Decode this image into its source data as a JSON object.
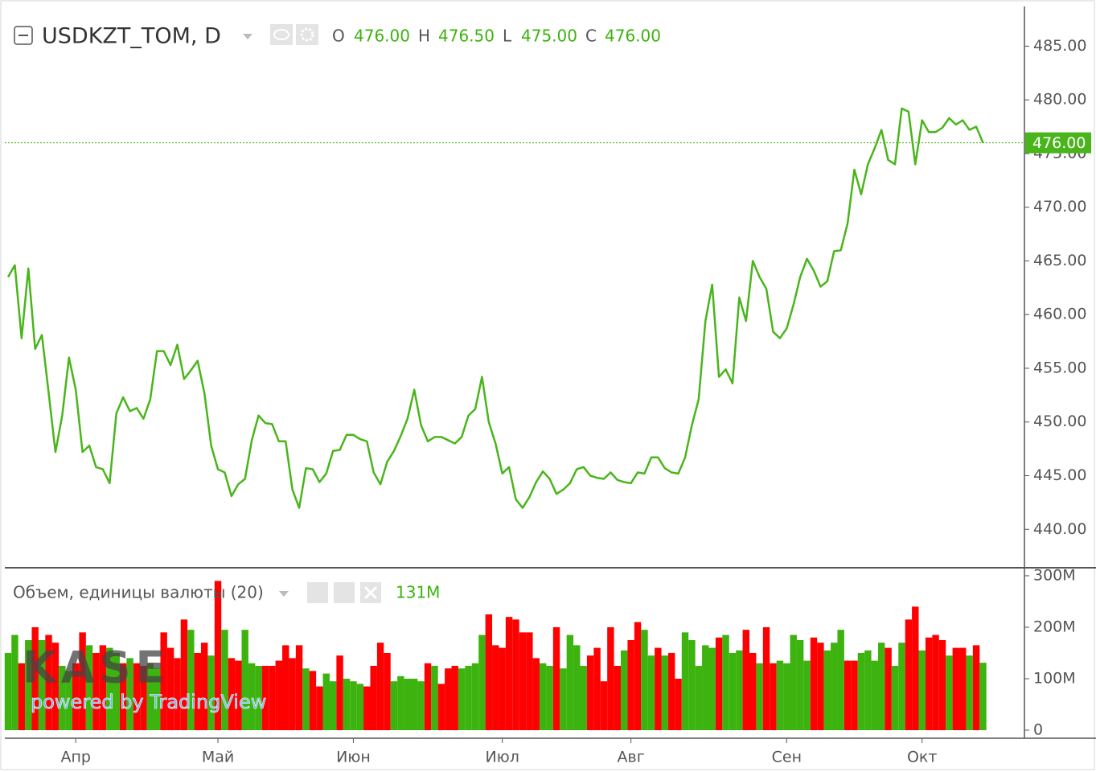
{
  "header": {
    "symbol": "USDKZT_TOM, D",
    "ohlc": [
      {
        "key": "O",
        "value": "476.00"
      },
      {
        "key": "H",
        "value": "476.50"
      },
      {
        "key": "L",
        "value": "475.00"
      },
      {
        "key": "C",
        "value": "476.00"
      }
    ]
  },
  "watermark": {
    "logo": "KASE",
    "credit": "powered by TradingView"
  },
  "chart_data": [
    {
      "type": "line",
      "title": "USDKZT_TOM, D",
      "color": "#49b51b",
      "ylim": [
        436.5,
        488.7
      ],
      "yticks": [
        {
          "value": 440,
          "label": "440.00"
        },
        {
          "value": 445,
          "label": "445.00"
        },
        {
          "value": 450,
          "label": "450.00"
        },
        {
          "value": 455,
          "label": "455.00"
        },
        {
          "value": 460,
          "label": "460.00"
        },
        {
          "value": 465,
          "label": "465.00"
        },
        {
          "value": 470,
          "label": "470.00"
        },
        {
          "value": 475,
          "label": "475.00"
        },
        {
          "value": 480,
          "label": "480.00"
        },
        {
          "value": 485,
          "label": "485.00"
        }
      ],
      "last_price": {
        "value": 476,
        "label": "476.00"
      },
      "grid": true,
      "values": [
        463.5,
        464.6,
        457.8,
        464.3,
        456.8,
        458.1,
        452.7,
        447.2,
        450.6,
        456.0,
        453.0,
        447.2,
        447.8,
        445.8,
        445.6,
        444.3,
        450.8,
        452.3,
        451.0,
        451.3,
        450.3,
        452.1,
        456.6,
        456.6,
        455.3,
        457.2,
        454.0,
        454.8,
        455.7,
        452.7,
        447.8,
        445.6,
        445.3,
        443.1,
        444.2,
        444.7,
        448.3,
        450.6,
        449.9,
        449.8,
        448.2,
        448.2,
        443.7,
        442.0,
        445.7,
        445.6,
        444.4,
        445.2,
        447.3,
        447.4,
        448.8,
        448.8,
        448.4,
        448.2,
        445.3,
        444.2,
        446.3,
        447.3,
        448.7,
        450.3,
        453.0,
        449.7,
        448.2,
        448.6,
        448.6,
        448.3,
        448.0,
        448.6,
        450.6,
        451.2,
        454.2,
        450.0,
        448.0,
        445.2,
        445.8,
        442.8,
        442.0,
        443.0,
        444.4,
        445.4,
        444.7,
        443.3,
        443.7,
        444.3,
        445.6,
        445.8,
        445.0,
        444.8,
        444.7,
        445.3,
        444.6,
        444.4,
        444.3,
        445.3,
        445.2,
        446.7,
        446.7,
        445.7,
        445.3,
        445.2,
        446.7,
        449.7,
        452.1,
        459.4,
        462.8,
        454.2,
        454.9,
        453.6,
        461.6,
        459.4,
        465.0,
        463.5,
        462.4,
        458.4,
        457.8,
        458.7,
        460.9,
        463.5,
        465.2,
        464.1,
        462.6,
        463.1,
        465.9,
        466.0,
        468.5,
        473.5,
        471.2,
        474.0,
        475.5,
        477.2,
        474.4,
        474.0,
        479.2,
        478.9,
        474.0,
        478.1,
        477.0,
        477.0,
        477.4,
        478.3,
        477.7,
        478.1,
        477.2,
        477.5,
        476.0
      ]
    },
    {
      "type": "bar",
      "title": "Объем, единицы валюты (20)",
      "legend_value": "131M",
      "ylim": [
        0,
        314
      ],
      "yticks": [
        0,
        {
          "value": 100,
          "label": "100M"
        },
        {
          "value": 200,
          "label": "200M"
        },
        {
          "value": 300,
          "label": "300M"
        }
      ],
      "categories": [
        null,
        null,
        null,
        null,
        null,
        null,
        null,
        null,
        null,
        null,
        "Апр",
        null,
        null,
        null,
        null,
        null,
        null,
        null,
        null,
        null,
        null,
        null,
        null,
        null,
        null,
        null,
        null,
        null,
        null,
        null,
        null,
        "Май",
        null,
        null,
        null,
        null,
        null,
        null,
        null,
        null,
        null,
        null,
        null,
        null,
        null,
        null,
        null,
        null,
        null,
        null,
        null,
        "Июн",
        null,
        null,
        null,
        null,
        null,
        null,
        null,
        null,
        null,
        null,
        null,
        null,
        null,
        null,
        null,
        null,
        null,
        null,
        null,
        null,
        null,
        "Июл",
        null,
        null,
        null,
        null,
        null,
        null,
        null,
        null,
        null,
        null,
        null,
        null,
        null,
        null,
        null,
        null,
        null,
        null,
        "Авг",
        null,
        null,
        null,
        null,
        null,
        null,
        null,
        null,
        null,
        null,
        null,
        null,
        null,
        null,
        null,
        null,
        null,
        null,
        null,
        null,
        null,
        null,
        "Сен",
        null,
        null,
        null,
        null,
        null,
        null,
        null,
        null,
        null,
        null,
        null,
        null,
        null,
        null,
        null,
        null,
        null,
        null,
        null,
        "Окт",
        null,
        null,
        null,
        null,
        null,
        null,
        null,
        null,
        null
      ],
      "values": [
        150,
        185,
        130,
        175,
        200,
        175,
        185,
        170,
        125,
        115,
        130,
        190,
        165,
        150,
        165,
        160,
        150,
        130,
        140,
        130,
        125,
        130,
        120,
        190,
        160,
        140,
        215,
        195,
        150,
        170,
        145,
        290,
        195,
        140,
        135,
        195,
        130,
        125,
        125,
        125,
        135,
        165,
        140,
        165,
        120,
        115,
        85,
        110,
        95,
        145,
        100,
        95,
        90,
        85,
        125,
        170,
        150,
        95,
        105,
        100,
        100,
        95,
        130,
        125,
        90,
        120,
        125,
        120,
        125,
        130,
        185,
        225,
        165,
        160,
        220,
        215,
        190,
        190,
        140,
        130,
        125,
        200,
        120,
        185,
        165,
        125,
        145,
        160,
        95,
        200,
        125,
        155,
        175,
        210,
        195,
        145,
        160,
        145,
        150,
        100,
        190,
        175,
        125,
        165,
        160,
        180,
        185,
        150,
        155,
        195,
        150,
        130,
        200,
        130,
        135,
        130,
        185,
        175,
        135,
        180,
        170,
        155,
        170,
        195,
        135,
        135,
        150,
        155,
        135,
        170,
        160,
        125,
        170,
        215,
        240,
        155,
        180,
        185,
        175,
        145,
        160,
        160,
        145,
        165,
        131
      ],
      "colors": [
        "#3cb30f",
        "#3cb30f",
        "#ff0000",
        "#3cb30f",
        "#ff0000",
        "#3cb30f",
        "#ff0000",
        "#ff0000",
        "#3cb30f",
        "#3cb30f",
        "#ff0000",
        "#ff0000",
        "#3cb30f",
        "#ff0000",
        "#ff0000",
        "#3cb30f",
        "#3cb30f",
        "#ff0000",
        "#3cb30f",
        "#ff0000",
        "#ff0000",
        "#3cb30f",
        "#3cb30f",
        "#ff0000",
        "#ff0000",
        "#ff0000",
        "#ff0000",
        "#3cb30f",
        "#ff0000",
        "#ff0000",
        "#3cb30f",
        "#ff0000",
        "#3cb30f",
        "#ff0000",
        "#ff0000",
        "#3cb30f",
        "#3cb30f",
        "#3cb30f",
        "#ff0000",
        "#ff0000",
        "#ff0000",
        "#ff0000",
        "#ff0000",
        "#ff0000",
        "#3cb30f",
        "#ff0000",
        "#ff0000",
        "#3cb30f",
        "#3cb30f",
        "#ff0000",
        "#3cb30f",
        "#3cb30f",
        "#3cb30f",
        "#ff0000",
        "#ff0000",
        "#ff0000",
        "#ff0000",
        "#3cb30f",
        "#3cb30f",
        "#3cb30f",
        "#3cb30f",
        "#3cb30f",
        "#ff0000",
        "#3cb30f",
        "#ff0000",
        "#ff0000",
        "#ff0000",
        "#3cb30f",
        "#3cb30f",
        "#3cb30f",
        "#3cb30f",
        "#ff0000",
        "#ff0000",
        "#ff0000",
        "#ff0000",
        "#ff0000",
        "#ff0000",
        "#ff0000",
        "#ff0000",
        "#3cb30f",
        "#3cb30f",
        "#ff0000",
        "#3cb30f",
        "#3cb30f",
        "#3cb30f",
        "#3cb30f",
        "#ff0000",
        "#ff0000",
        "#ff0000",
        "#ff0000",
        "#ff0000",
        "#3cb30f",
        "#ff0000",
        "#ff0000",
        "#3cb30f",
        "#3cb30f",
        "#ff0000",
        "#3cb30f",
        "#ff0000",
        "#ff0000",
        "#3cb30f",
        "#3cb30f",
        "#3cb30f",
        "#3cb30f",
        "#3cb30f",
        "#ff0000",
        "#3cb30f",
        "#3cb30f",
        "#3cb30f",
        "#ff0000",
        "#ff0000",
        "#3cb30f",
        "#ff0000",
        "#ff0000",
        "#3cb30f",
        "#3cb30f",
        "#3cb30f",
        "#3cb30f",
        "#3cb30f",
        "#ff0000",
        "#ff0000",
        "#3cb30f",
        "#3cb30f",
        "#3cb30f",
        "#ff0000",
        "#ff0000",
        "#3cb30f",
        "#3cb30f",
        "#3cb30f",
        "#3cb30f",
        "#ff0000",
        "#3cb30f",
        "#3cb30f",
        "#ff0000",
        "#ff0000",
        "#3cb30f",
        "#ff0000",
        "#ff0000",
        "#ff0000",
        "#3cb30f",
        "#ff0000",
        "#ff0000",
        "#3cb30f",
        "#ff0000",
        "#3cb30f"
      ]
    }
  ]
}
